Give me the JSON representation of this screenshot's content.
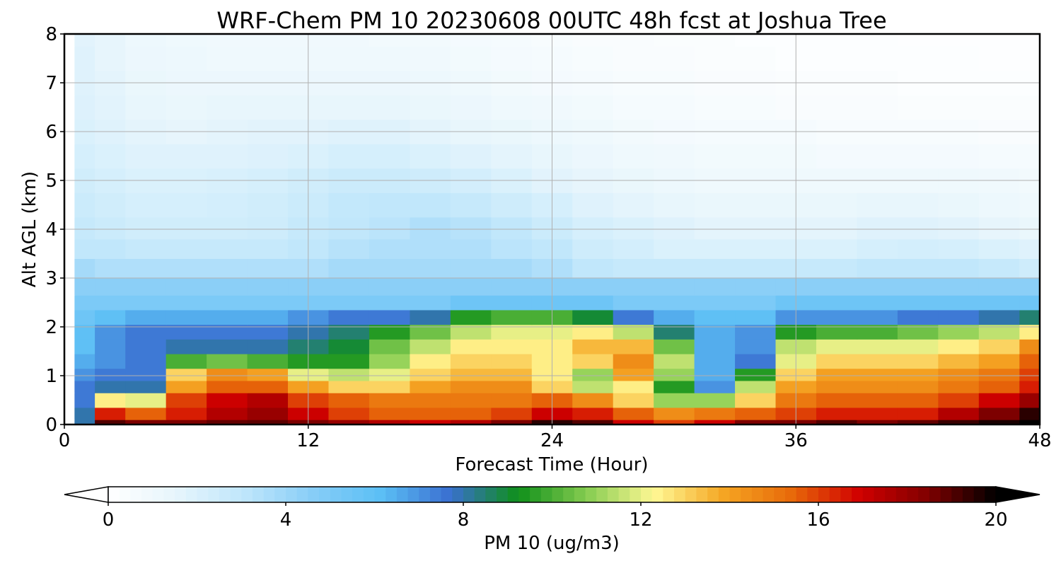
{
  "chart_data": {
    "type": "heatmap",
    "title": "WRF-Chem PM 10  20230608 00UTC 48h fcst at Joshua Tree",
    "xlabel": "Forecast Time (Hour)",
    "ylabel": "Alt AGL (km)",
    "xlim": [
      0,
      48
    ],
    "ylim": [
      0,
      8
    ],
    "x_ticks": [
      0,
      12,
      24,
      36,
      48
    ],
    "y_ticks": [
      0,
      1,
      2,
      3,
      4,
      5,
      6,
      7,
      8
    ],
    "grid": true,
    "colorbar": {
      "label": "PM 10  (ug/m3)",
      "range": [
        0,
        20
      ],
      "ticks": [
        0,
        4,
        8,
        12,
        16,
        20
      ],
      "extend": "both",
      "colors": [
        "#ffffff",
        "#e6f5fc",
        "#bfe6fb",
        "#87cdf7",
        "#5bbff5",
        "#3a6fd0",
        "#0f8f1a",
        "#85cc50",
        "#fff894",
        "#f5a623",
        "#e86a0a",
        "#d00000",
        "#800000",
        "#000000"
      ]
    },
    "x": [
      0,
      1,
      2,
      4,
      6,
      8,
      10,
      12,
      14,
      16,
      18,
      20,
      22,
      24,
      26,
      28,
      30,
      32,
      34,
      36,
      38,
      40,
      42,
      44,
      46,
      48
    ],
    "y": [
      0.0,
      0.2,
      0.5,
      0.8,
      1.0,
      1.3,
      1.6,
      1.9,
      2.2,
      2.5,
      2.8,
      3.2,
      3.6,
      4.0,
      4.5,
      5.0,
      5.5,
      6.0,
      6.5,
      7.0,
      7.5,
      8.0
    ],
    "z": [
      [
        0.0,
        8.0,
        19.0,
        18.5,
        18.5,
        18.8,
        18.9,
        18.5,
        18.0,
        17.5,
        17.0,
        17.5,
        18.5,
        19.5,
        19.0,
        17.0,
        16.0,
        17.0,
        18.5,
        18.5,
        19.0,
        18.5,
        18.8,
        19.3,
        19.7,
        20.0
      ],
      [
        0.0,
        8.0,
        16.5,
        15.5,
        16.5,
        17.5,
        18.0,
        17.0,
        16.0,
        15.5,
        15.5,
        15.5,
        16.0,
        17.0,
        16.5,
        15.5,
        14.5,
        15.0,
        15.5,
        16.0,
        16.5,
        16.5,
        16.5,
        17.5,
        18.5,
        19.5
      ],
      [
        0.0,
        7.5,
        12.5,
        12.0,
        16.0,
        17.0,
        17.5,
        16.0,
        15.5,
        15.0,
        15.0,
        15.0,
        15.0,
        15.5,
        14.5,
        13.0,
        11.0,
        11.0,
        13.0,
        15.0,
        15.5,
        15.5,
        15.5,
        16.0,
        17.0,
        18.0
      ],
      [
        0.0,
        7.5,
        8.0,
        8.0,
        14.0,
        15.5,
        15.5,
        14.0,
        13.0,
        13.0,
        14.0,
        14.5,
        14.5,
        13.0,
        11.5,
        12.5,
        9.5,
        7.0,
        11.5,
        14.0,
        14.5,
        14.5,
        14.5,
        15.0,
        15.5,
        16.5
      ],
      [
        0.0,
        7.0,
        7.5,
        7.5,
        13.0,
        14.5,
        14.0,
        12.0,
        11.5,
        12.0,
        13.0,
        13.5,
        13.5,
        12.5,
        11.0,
        14.0,
        11.0,
        6.5,
        9.5,
        13.0,
        14.0,
        14.0,
        14.0,
        14.5,
        15.0,
        16.0
      ],
      [
        0.0,
        6.5,
        7.0,
        7.5,
        10.0,
        10.5,
        10.0,
        9.5,
        9.5,
        11.0,
        12.5,
        13.0,
        13.0,
        12.5,
        13.0,
        14.5,
        11.5,
        6.5,
        7.5,
        12.0,
        13.0,
        13.0,
        13.0,
        13.5,
        14.0,
        15.5
      ],
      [
        0.0,
        6.0,
        7.0,
        7.5,
        8.0,
        8.0,
        8.0,
        8.5,
        9.0,
        10.5,
        11.5,
        12.5,
        12.5,
        12.5,
        13.5,
        13.5,
        10.5,
        6.5,
        7.0,
        11.5,
        12.0,
        12.0,
        12.0,
        12.5,
        13.0,
        14.5
      ],
      [
        0.0,
        6.0,
        7.0,
        7.5,
        7.5,
        7.5,
        7.5,
        8.0,
        8.5,
        9.5,
        10.5,
        11.5,
        12.0,
        12.0,
        12.5,
        11.5,
        8.5,
        6.5,
        7.0,
        9.5,
        10.0,
        10.0,
        10.5,
        11.0,
        11.5,
        12.5
      ],
      [
        0.0,
        5.5,
        6.0,
        6.5,
        6.5,
        6.5,
        6.5,
        7.0,
        7.5,
        7.5,
        8.0,
        9.5,
        10.0,
        10.0,
        9.0,
        7.5,
        6.5,
        6.0,
        6.0,
        7.0,
        7.0,
        7.0,
        7.5,
        7.5,
        8.0,
        8.5
      ],
      [
        0.0,
        5.0,
        5.0,
        5.0,
        5.0,
        5.0,
        5.0,
        5.0,
        5.0,
        5.0,
        5.0,
        5.5,
        5.5,
        5.5,
        5.5,
        5.0,
        5.0,
        5.0,
        5.0,
        5.5,
        5.5,
        5.5,
        5.5,
        5.5,
        5.5,
        5.5
      ],
      [
        0.0,
        4.5,
        4.5,
        4.5,
        4.5,
        4.5,
        4.5,
        4.5,
        4.5,
        4.5,
        4.5,
        4.5,
        4.5,
        4.5,
        4.5,
        4.5,
        4.5,
        4.5,
        4.5,
        4.5,
        4.5,
        4.5,
        4.5,
        4.5,
        4.5,
        4.5
      ],
      [
        0.0,
        3.8,
        3.5,
        3.5,
        3.5,
        3.5,
        3.5,
        3.5,
        3.8,
        3.8,
        3.8,
        3.8,
        3.8,
        3.5,
        3.0,
        2.8,
        2.8,
        2.8,
        2.8,
        2.8,
        2.8,
        3.0,
        3.0,
        3.0,
        2.8,
        2.5
      ],
      [
        0.0,
        3.0,
        3.0,
        2.8,
        2.8,
        2.8,
        2.8,
        3.0,
        3.3,
        3.5,
        3.5,
        3.5,
        3.2,
        3.0,
        2.5,
        2.3,
        2.0,
        2.0,
        2.0,
        2.0,
        2.0,
        2.2,
        2.3,
        2.2,
        2.0,
        1.8
      ],
      [
        0.0,
        2.8,
        2.6,
        2.4,
        2.4,
        2.4,
        2.5,
        2.8,
        3.0,
        3.2,
        3.5,
        3.3,
        3.0,
        2.6,
        2.2,
        2.0,
        1.8,
        1.6,
        1.6,
        1.6,
        1.6,
        1.8,
        1.8,
        1.7,
        1.5,
        1.3
      ],
      [
        0.0,
        2.6,
        2.4,
        2.2,
        2.2,
        2.3,
        2.4,
        2.6,
        2.9,
        3.0,
        3.0,
        2.8,
        2.5,
        2.2,
        1.8,
        1.6,
        1.4,
        1.3,
        1.3,
        1.3,
        1.3,
        1.4,
        1.4,
        1.3,
        1.1,
        1.0
      ],
      [
        0.0,
        2.4,
        2.2,
        2.0,
        2.0,
        2.1,
        2.2,
        2.4,
        2.6,
        2.6,
        2.5,
        2.3,
        2.0,
        1.7,
        1.5,
        1.3,
        1.1,
        1.0,
        1.0,
        1.0,
        1.0,
        1.0,
        1.0,
        1.0,
        0.9,
        0.8
      ],
      [
        0.0,
        2.2,
        2.0,
        1.8,
        1.8,
        1.8,
        1.9,
        2.0,
        2.2,
        2.2,
        2.0,
        1.8,
        1.6,
        1.4,
        1.2,
        1.0,
        0.9,
        0.8,
        0.8,
        0.8,
        0.7,
        0.7,
        0.7,
        0.7,
        0.6,
        0.6
      ],
      [
        0.0,
        2.0,
        1.8,
        1.6,
        1.5,
        1.6,
        1.7,
        1.7,
        1.8,
        1.8,
        1.6,
        1.4,
        1.3,
        1.1,
        1.0,
        0.8,
        0.7,
        0.6,
        0.6,
        0.6,
        0.5,
        0.5,
        0.5,
        0.5,
        0.4,
        0.4
      ],
      [
        0.0,
        1.9,
        1.7,
        1.4,
        1.3,
        1.4,
        1.4,
        1.4,
        1.4,
        1.4,
        1.3,
        1.2,
        1.0,
        0.9,
        0.8,
        0.6,
        0.6,
        0.5,
        0.5,
        0.4,
        0.4,
        0.4,
        0.3,
        0.3,
        0.3,
        0.3
      ],
      [
        0.0,
        1.8,
        1.6,
        1.3,
        1.2,
        1.2,
        1.2,
        1.2,
        1.2,
        1.2,
        1.1,
        1.0,
        0.8,
        0.7,
        0.6,
        0.5,
        0.5,
        0.4,
        0.4,
        0.3,
        0.3,
        0.3,
        0.2,
        0.2,
        0.2,
        0.2
      ],
      [
        0.0,
        1.8,
        1.5,
        1.2,
        1.1,
        1.0,
        1.0,
        1.0,
        1.0,
        1.0,
        0.9,
        0.8,
        0.7,
        0.6,
        0.5,
        0.4,
        0.4,
        0.3,
        0.3,
        0.2,
        0.2,
        0.2,
        0.2,
        0.2,
        0.1,
        0.1
      ],
      [
        0.0,
        1.7,
        1.5,
        1.1,
        1.0,
        0.9,
        0.9,
        0.9,
        0.9,
        0.8,
        0.8,
        0.7,
        0.6,
        0.5,
        0.4,
        0.4,
        0.3,
        0.3,
        0.2,
        0.2,
        0.2,
        0.2,
        0.1,
        0.1,
        0.1,
        0.1
      ]
    ]
  }
}
